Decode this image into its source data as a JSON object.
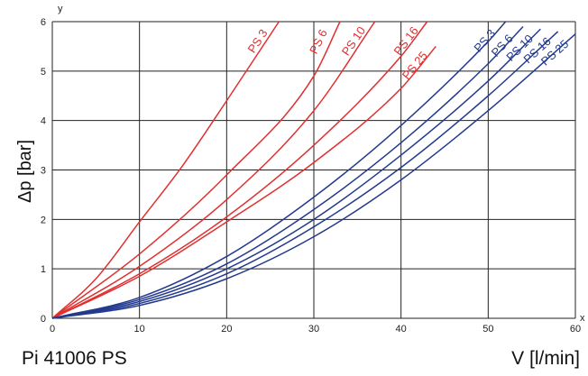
{
  "chart_data": {
    "type": "line",
    "subtitle": "Pi 41006 PS",
    "xlabel": "V [l/min]",
    "ylabel": "Δp [bar]",
    "x_axis_letter": "x",
    "y_axis_letter": "y",
    "xlim": [
      0,
      60
    ],
    "ylim": [
      0,
      6
    ],
    "xticks": [
      "0",
      "10",
      "20",
      "30",
      "40",
      "50",
      "60"
    ],
    "yticks": [
      "0",
      "1",
      "2",
      "3",
      "4",
      "5",
      "6"
    ],
    "grid": true,
    "legend": "none",
    "colors": {
      "group_red": "#e03030",
      "group_blue": "#233a8e",
      "grid": "#222222"
    },
    "series": [
      {
        "name": "PS 3",
        "group": "red",
        "points": [
          [
            0,
            0
          ],
          [
            5,
            0.8
          ],
          [
            10,
            1.95
          ],
          [
            15,
            3.1
          ],
          [
            20,
            4.4
          ],
          [
            26,
            6.0
          ]
        ]
      },
      {
        "name": "PS 6",
        "group": "red",
        "points": [
          [
            0,
            0
          ],
          [
            10,
            1.3
          ],
          [
            20,
            2.9
          ],
          [
            30,
            4.9
          ],
          [
            33,
            6.0
          ]
        ]
      },
      {
        "name": "PS 10",
        "group": "red",
        "points": [
          [
            0,
            0
          ],
          [
            10,
            1.05
          ],
          [
            20,
            2.4
          ],
          [
            30,
            4.2
          ],
          [
            37,
            6.0
          ]
        ]
      },
      {
        "name": "PS 16",
        "group": "red",
        "points": [
          [
            0,
            0
          ],
          [
            10,
            0.9
          ],
          [
            20,
            2.05
          ],
          [
            30,
            3.5
          ],
          [
            40,
            5.3
          ],
          [
            43,
            6.0
          ]
        ]
      },
      {
        "name": "PS 25",
        "group": "red",
        "points": [
          [
            0,
            0
          ],
          [
            10,
            0.85
          ],
          [
            20,
            1.95
          ],
          [
            30,
            3.15
          ],
          [
            40,
            4.65
          ],
          [
            44,
            5.5
          ]
        ]
      },
      {
        "name": "PS 3",
        "group": "blue",
        "points": [
          [
            0,
            0
          ],
          [
            10,
            0.42
          ],
          [
            20,
            1.25
          ],
          [
            30,
            2.45
          ],
          [
            40,
            3.9
          ],
          [
            50,
            5.6
          ],
          [
            52,
            6.0
          ]
        ]
      },
      {
        "name": "PS 6",
        "group": "blue",
        "points": [
          [
            0,
            0
          ],
          [
            10,
            0.38
          ],
          [
            20,
            1.1
          ],
          [
            30,
            2.2
          ],
          [
            40,
            3.55
          ],
          [
            50,
            5.15
          ],
          [
            54,
            5.9
          ]
        ]
      },
      {
        "name": "PS 10",
        "group": "blue",
        "points": [
          [
            0,
            0
          ],
          [
            10,
            0.34
          ],
          [
            20,
            1.0
          ],
          [
            30,
            2.0
          ],
          [
            40,
            3.3
          ],
          [
            50,
            4.8
          ],
          [
            56,
            5.85
          ]
        ]
      },
      {
        "name": "PS 16",
        "group": "blue",
        "points": [
          [
            0,
            0
          ],
          [
            10,
            0.3
          ],
          [
            20,
            0.9
          ],
          [
            30,
            1.85
          ],
          [
            40,
            3.05
          ],
          [
            50,
            4.5
          ],
          [
            58,
            5.8
          ]
        ]
      },
      {
        "name": "PS 25",
        "group": "blue",
        "points": [
          [
            0,
            0
          ],
          [
            10,
            0.26
          ],
          [
            20,
            0.8
          ],
          [
            30,
            1.65
          ],
          [
            40,
            2.8
          ],
          [
            50,
            4.2
          ],
          [
            60,
            5.75
          ]
        ]
      }
    ]
  }
}
